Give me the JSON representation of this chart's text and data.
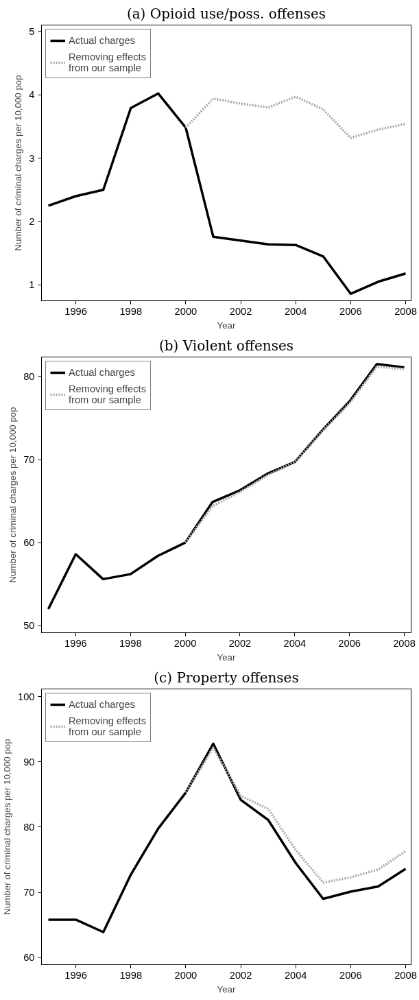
{
  "chart_data": [
    {
      "type": "line",
      "title": "(a) Opioid use/poss. offenses",
      "xlabel": "Year",
      "ylabel": "Number of criminal charges per 10,000 pop",
      "x": [
        1995,
        1996,
        1997,
        1998,
        1999,
        2000,
        2001,
        2002,
        2003,
        2004,
        2005,
        2006,
        2007,
        2008
      ],
      "series": [
        {
          "name": "Actual charges",
          "color": "#000000",
          "line_style": "solid",
          "values": [
            2.25,
            2.4,
            2.5,
            3.79,
            4.02,
            3.48,
            1.76,
            1.7,
            1.64,
            1.63,
            1.45,
            0.86,
            1.05,
            1.18
          ]
        },
        {
          "name": "Removing effects\nfrom our sample",
          "color": "#a6a6a6",
          "line_style": "dotted",
          "values": [
            null,
            null,
            null,
            null,
            null,
            3.48,
            3.94,
            3.86,
            3.8,
            3.97,
            3.77,
            3.32,
            3.45,
            3.54
          ]
        }
      ],
      "xlim": [
        1994.75,
        2008.2
      ],
      "xticks": [
        1996,
        1998,
        2000,
        2002,
        2004,
        2006,
        2008
      ],
      "ylim": [
        0.75,
        5.1
      ],
      "yticks": [
        1,
        2,
        3,
        4,
        5
      ],
      "grid": false,
      "legend": "top left"
    },
    {
      "type": "line",
      "title": "(b) Violent offenses",
      "xlabel": "Year",
      "ylabel": "Number of criminal charges per 10,000 pop",
      "x": [
        1995,
        1996,
        1997,
        1998,
        1999,
        2000,
        2001,
        2002,
        2003,
        2004,
        2005,
        2006,
        2007,
        2008
      ],
      "series": [
        {
          "name": "Actual charges",
          "color": "#000000",
          "line_style": "solid",
          "values": [
            52.0,
            58.6,
            55.6,
            56.2,
            58.4,
            60.0,
            64.9,
            66.3,
            68.3,
            69.7,
            73.5,
            77.0,
            81.5,
            81.1
          ]
        },
        {
          "name": "Removing effects\nfrom our sample",
          "color": "#a6a6a6",
          "line_style": "dotted",
          "values": [
            null,
            null,
            null,
            null,
            null,
            60.0,
            64.4,
            66.1,
            68.1,
            69.7,
            73.4,
            76.8,
            81.2,
            80.9
          ]
        }
      ],
      "xlim": [
        1994.75,
        2008.25
      ],
      "xticks": [
        1996,
        1998,
        2000,
        2002,
        2004,
        2006,
        2008
      ],
      "ylim": [
        49.15,
        82.35
      ],
      "yticks": [
        50,
        60,
        70,
        80
      ],
      "grid": false,
      "legend": "top left"
    },
    {
      "type": "line",
      "title": "(c) Property offenses",
      "xlabel": "Year",
      "ylabel": "Number of criminal charges per 10,000 pop",
      "x": [
        1995,
        1996,
        1997,
        1998,
        1999,
        2000,
        2001,
        2002,
        2003,
        2004,
        2005,
        2006,
        2007,
        2008
      ],
      "series": [
        {
          "name": "Actual charges",
          "color": "#000000",
          "line_style": "solid",
          "values": [
            65.8,
            65.8,
            63.9,
            72.7,
            79.8,
            85.3,
            92.8,
            84.2,
            81.1,
            74.5,
            69.0,
            70.1,
            70.9,
            73.6
          ]
        },
        {
          "name": "Removing effects\nfrom our sample",
          "color": "#a6a6a6",
          "line_style": "dotted",
          "values": [
            null,
            null,
            null,
            null,
            null,
            85.3,
            92.2,
            84.8,
            82.8,
            76.5,
            71.5,
            72.3,
            73.5,
            76.3
          ]
        }
      ],
      "xlim": [
        1994.75,
        2008.2
      ],
      "xticks": [
        1996,
        1998,
        2000,
        2002,
        2004,
        2006,
        2008
      ],
      "ylim": [
        58.9,
        101.2
      ],
      "yticks": [
        60,
        70,
        80,
        90,
        100
      ],
      "grid": false,
      "legend": "top left"
    }
  ]
}
